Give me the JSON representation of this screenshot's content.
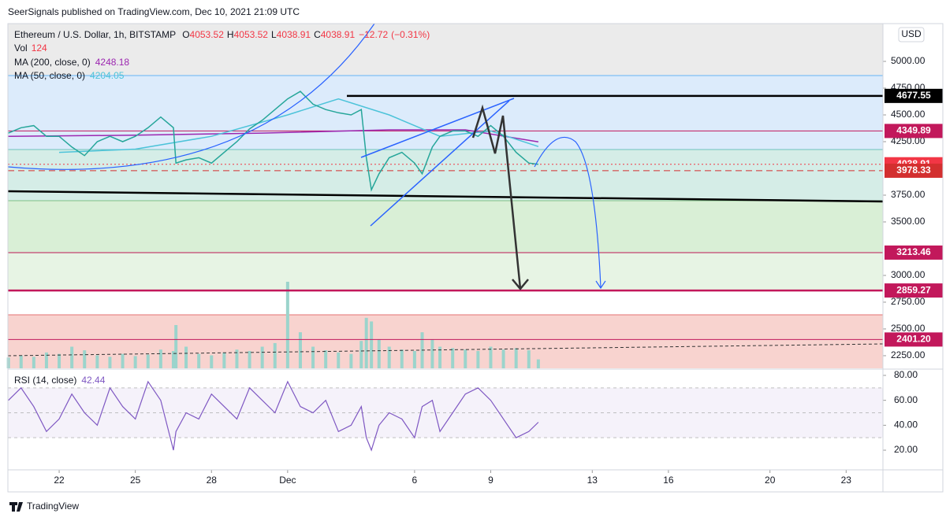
{
  "header": {
    "published": "SeerSignals published on TradingView.com, Dec 10, 2021 21:09 UTC",
    "currency": "USD",
    "brand": "TradingView"
  },
  "chart_data": {
    "type": "line",
    "legend": {
      "symbol": "Ethereum / U.S. Dollar, 1h, BITSTAMP",
      "ohlc": [
        {
          "key": "O",
          "value": 4053.52
        },
        {
          "key": "H",
          "value": 4053.52
        },
        {
          "key": "L",
          "value": 4038.91
        },
        {
          "key": "C",
          "value": 4038.91
        }
      ],
      "change": {
        "value": -12.72,
        "label": "−12.72"
      },
      "change_pct": {
        "value": -0.31,
        "label": "(−0.31%)"
      },
      "vol_name": "Vol",
      "vol_value": 124,
      "ma200_name": "MA (200, close, 0)",
      "ma200_value": 4248.18,
      "ma50_name": "MA (50, close, 0)",
      "ma50_value": 4204.05
    },
    "x": [
      20,
      20.5,
      21,
      21.5,
      22,
      22.5,
      23,
      23.5,
      24,
      24.5,
      25,
      25.5,
      26,
      26.5,
      26.6,
      27,
      27.5,
      28,
      28.5,
      29,
      29.5,
      30,
      30.5,
      31,
      31.5,
      32,
      32.5,
      33,
      33.5,
      33.9,
      34.1,
      34.3,
      34.6,
      35,
      35.5,
      36,
      36.3,
      36.7,
      37,
      37.5,
      38,
      38.5,
      39,
      39.5,
      40,
      40.5,
      40.875
    ],
    "series": [
      {
        "name": "ETHUSD",
        "color": "#26a69a",
        "values": [
          4330,
          4380,
          4400,
          4300,
          4300,
          4200,
          4120,
          4250,
          4300,
          4250,
          4300,
          4380,
          4480,
          4380,
          4050,
          4080,
          4100,
          4050,
          4150,
          4250,
          4370,
          4450,
          4550,
          4650,
          4720,
          4600,
          4550,
          4520,
          4500,
          4550,
          4100,
          3800,
          3950,
          4100,
          4150,
          4050,
          3950,
          4200,
          4300,
          4350,
          4350,
          4300,
          4400,
          4300,
          4150,
          4050,
          4038.91
        ]
      },
      {
        "name": "Volume",
        "color": "#9bd4cc",
        "values": [
          150,
          180,
          160,
          220,
          200,
          300,
          250,
          180,
          160,
          200,
          170,
          190,
          260,
          240,
          600,
          300,
          200,
          180,
          220,
          260,
          240,
          300,
          350,
          1200,
          500,
          300,
          250,
          220,
          200,
          380,
          700,
          650,
          400,
          300,
          260,
          240,
          500,
          400,
          300,
          280,
          260,
          240,
          300,
          260,
          280,
          250,
          124
        ]
      }
    ],
    "ma_series": [
      {
        "name": "MA (200, close, 0)",
        "color": "#9c27b0",
        "x": [
          20,
          25,
          30,
          35,
          38,
          40.875
        ],
        "values": [
          4300,
          4310,
          4330,
          4360,
          4360,
          4248.18
        ]
      },
      {
        "name": "MA (50, close, 0)",
        "color": "#4cc3d9",
        "x": [
          22,
          25,
          28,
          31,
          33,
          35,
          37,
          39,
          40.875
        ],
        "values": [
          4150,
          4180,
          4300,
          4500,
          4650,
          4500,
          4300,
          4350,
          4204.05
        ]
      }
    ],
    "levels": [
      {
        "value": 4677.55,
        "color": "#000000"
      },
      {
        "value": 4349.89,
        "color": "#c2185b"
      },
      {
        "value": 4038.91,
        "color": "#f23645"
      },
      {
        "value": 3978.33,
        "color": "#d32f2f"
      },
      {
        "value": 3213.46,
        "color": "#c2185b"
      },
      {
        "value": 2859.27,
        "color": "#c2185b"
      },
      {
        "value": {
          "value": 2401.2,
          "label": "2401.20"
        },
        "color": "#c2185b"
      }
    ],
    "xlim": [
      19.98,
      54.45
    ],
    "xticks": [
      {
        "value": 22,
        "label": "22"
      },
      {
        "value": 25,
        "label": "25"
      },
      {
        "value": 28,
        "label": "28"
      },
      {
        "value": 31,
        "label": "Dec"
      },
      {
        "value": 36,
        "label": "6"
      },
      {
        "value": 39,
        "label": "9"
      },
      {
        "value": 43,
        "label": "13"
      },
      {
        "value": 46,
        "label": "16"
      },
      {
        "value": 50,
        "label": "20"
      },
      {
        "value": 53,
        "label": "23"
      }
    ],
    "ylim": [
      2132,
      5353
    ],
    "yticks": [
      {
        "value": 2250,
        "label": "2250.00"
      },
      {
        "value": 2500,
        "label": "2500.00"
      },
      {
        "value": 2750,
        "label": "2750.00"
      },
      {
        "value": 3000,
        "label": "3000.00"
      },
      {
        "value": 3500,
        "label": "3500.00"
      },
      {
        "value": 3750,
        "label": "3750.00"
      },
      {
        "value": 4250,
        "label": "4250.00"
      },
      {
        "value": 4500,
        "label": "4500.00"
      },
      {
        "value": 4750,
        "label": "4750.00"
      },
      {
        "value": 5000,
        "label": "5000.00"
      }
    ],
    "rsi": {
      "name": "RSI (14, close)",
      "color": "#7e57c2",
      "last": 42.44,
      "values": [
        60,
        70,
        55,
        35,
        45,
        65,
        50,
        40,
        70,
        55,
        45,
        75,
        60,
        20,
        35,
        50,
        45,
        65,
        55,
        45,
        70,
        60,
        50,
        75,
        55,
        50,
        60,
        35,
        40,
        55,
        30,
        20,
        40,
        50,
        45,
        30,
        55,
        60,
        35,
        50,
        65,
        70,
        60,
        45,
        30,
        35,
        42.44
      ],
      "ylim": [
        5.5,
        84.4
      ],
      "yticks": [
        {
          "value": 20,
          "label": "20.00"
        },
        {
          "value": 40,
          "label": "40.00"
        },
        {
          "value": 60,
          "label": "60.00"
        },
        {
          "value": 80,
          "label": "80.00"
        }
      ]
    }
  }
}
